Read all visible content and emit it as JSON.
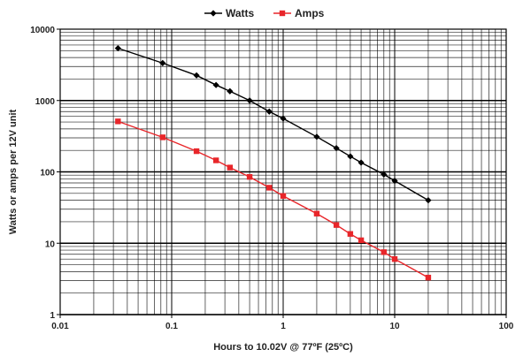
{
  "chart_data": {
    "type": "line",
    "xscale": "log",
    "yscale": "log",
    "xlim": [
      0.01,
      100
    ],
    "ylim": [
      1,
      10000
    ],
    "xlabel": "Hours to 10.02V @ 77ºF (25ºC)",
    "ylabel": "Watts or amps per 12V unit",
    "x_ticks": [
      "0.01",
      "0.1",
      "1",
      "10",
      "100"
    ],
    "y_ticks": [
      "1",
      "10",
      "100",
      "1000",
      "10000"
    ],
    "grid": "major and minor",
    "legend_position": "top-center",
    "series": [
      {
        "name": "Watts",
        "color": "#000000",
        "marker": "diamond",
        "points": [
          {
            "x": 0.033,
            "y": 5400
          },
          {
            "x": 0.083,
            "y": 3350
          },
          {
            "x": 0.167,
            "y": 2250
          },
          {
            "x": 0.25,
            "y": 1650
          },
          {
            "x": 0.333,
            "y": 1350
          },
          {
            "x": 0.5,
            "y": 1000
          },
          {
            "x": 0.75,
            "y": 700
          },
          {
            "x": 1,
            "y": 560
          },
          {
            "x": 2,
            "y": 310
          },
          {
            "x": 3,
            "y": 215
          },
          {
            "x": 4,
            "y": 165
          },
          {
            "x": 5,
            "y": 135
          },
          {
            "x": 8,
            "y": 92
          },
          {
            "x": 10,
            "y": 75
          },
          {
            "x": 20,
            "y": 40
          }
        ]
      },
      {
        "name": "Amps",
        "color": "#e8262a",
        "marker": "square",
        "points": [
          {
            "x": 0.033,
            "y": 510
          },
          {
            "x": 0.083,
            "y": 305
          },
          {
            "x": 0.167,
            "y": 195
          },
          {
            "x": 0.25,
            "y": 145
          },
          {
            "x": 0.333,
            "y": 115
          },
          {
            "x": 0.5,
            "y": 85
          },
          {
            "x": 0.75,
            "y": 60
          },
          {
            "x": 1,
            "y": 46
          },
          {
            "x": 2,
            "y": 26
          },
          {
            "x": 3,
            "y": 18
          },
          {
            "x": 4,
            "y": 13.5
          },
          {
            "x": 5,
            "y": 11
          },
          {
            "x": 8,
            "y": 7.5
          },
          {
            "x": 10,
            "y": 6
          },
          {
            "x": 20,
            "y": 3.3
          }
        ]
      }
    ]
  }
}
